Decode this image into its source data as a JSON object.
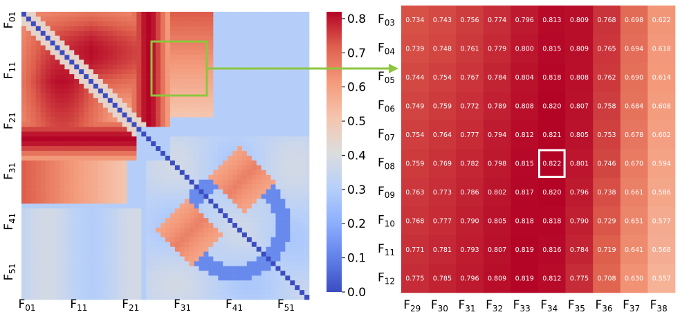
{
  "chart_data": [
    {
      "type": "heatmap",
      "x_tick_labels": [
        "F01",
        "F11",
        "F21",
        "F31",
        "F41",
        "F51"
      ],
      "y_tick_labels": [
        "F01",
        "F11",
        "F21",
        "F31",
        "F41",
        "F51"
      ],
      "grid_size": 60,
      "colormap": "coolwarm",
      "note_regions": [
        {
          "rows": "F03-F12",
          "cols": "F29-F38",
          "highlight_color": "#8cc63f"
        }
      ]
    },
    {
      "type": "heatmap",
      "rows": [
        "F03",
        "F04",
        "F05",
        "F06",
        "F07",
        "F08",
        "F09",
        "F10",
        "F11",
        "F12"
      ],
      "cols": [
        "F29",
        "F30",
        "F31",
        "F32",
        "F33",
        "F34",
        "F35",
        "F36",
        "F37",
        "F38"
      ],
      "values": [
        [
          0.734,
          0.743,
          0.756,
          0.774,
          0.796,
          0.813,
          0.809,
          0.768,
          0.698,
          0.622
        ],
        [
          0.739,
          0.748,
          0.761,
          0.779,
          0.8,
          0.815,
          0.809,
          0.765,
          0.694,
          0.618
        ],
        [
          0.744,
          0.754,
          0.767,
          0.784,
          0.804,
          0.818,
          0.808,
          0.762,
          0.69,
          0.614
        ],
        [
          0.749,
          0.759,
          0.772,
          0.789,
          0.808,
          0.82,
          0.807,
          0.758,
          0.684,
          0.608
        ],
        [
          0.754,
          0.764,
          0.777,
          0.794,
          0.812,
          0.821,
          0.805,
          0.753,
          0.678,
          0.602
        ],
        [
          0.759,
          0.769,
          0.782,
          0.798,
          0.815,
          0.822,
          0.801,
          0.746,
          0.67,
          0.594
        ],
        [
          0.763,
          0.773,
          0.786,
          0.802,
          0.817,
          0.82,
          0.796,
          0.738,
          0.661,
          0.586
        ],
        [
          0.768,
          0.777,
          0.79,
          0.805,
          0.818,
          0.818,
          0.79,
          0.729,
          0.651,
          0.577
        ],
        [
          0.771,
          0.781,
          0.793,
          0.807,
          0.819,
          0.816,
          0.784,
          0.719,
          0.641,
          0.568
        ],
        [
          0.775,
          0.785,
          0.796,
          0.809,
          0.819,
          0.812,
          0.775,
          0.708,
          0.63,
          0.557
        ]
      ],
      "highlight_cell": {
        "row": "F08",
        "col": "F34",
        "color": "#ffffff"
      }
    }
  ],
  "colorbar": {
    "ticks": [
      "0.0",
      "0.1",
      "0.2",
      "0.3",
      "0.4",
      "0.5",
      "0.6",
      "0.7",
      "0.8"
    ],
    "range": [
      0.0,
      0.82
    ]
  },
  "colors": {
    "arrow": "#8cc63f",
    "low": "#3b4cc0",
    "mid": "#dddddd",
    "high": "#b40426"
  }
}
